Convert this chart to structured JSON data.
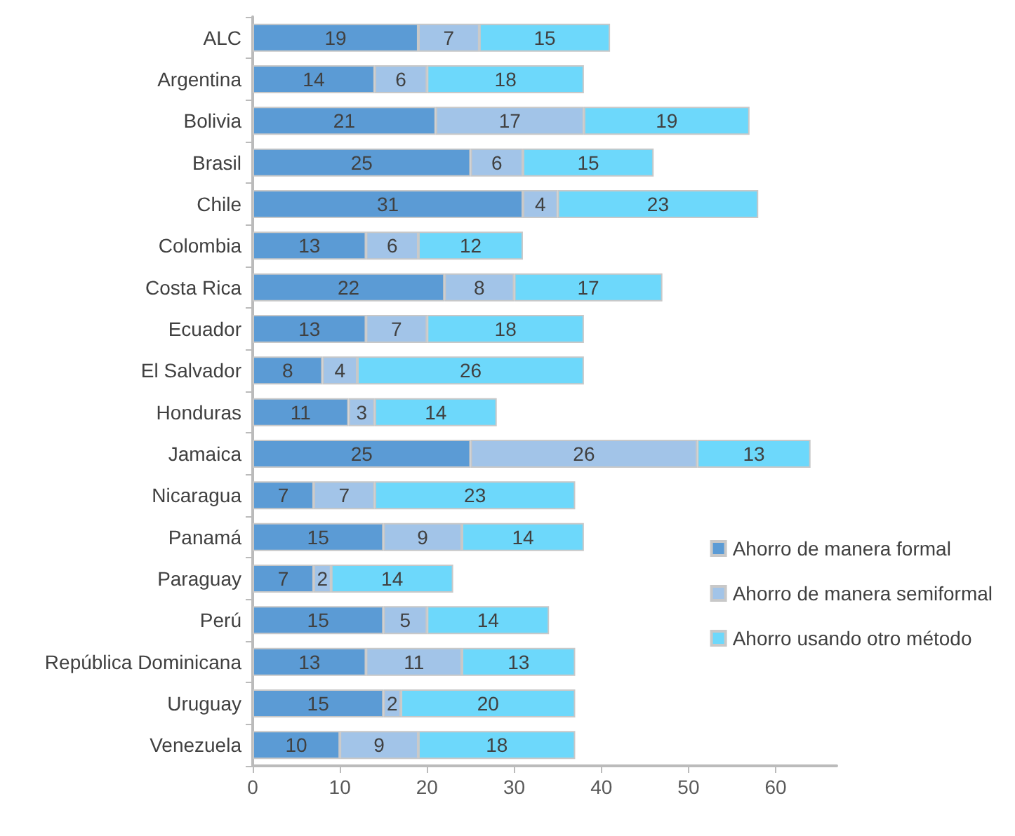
{
  "chart_data": {
    "type": "bar",
    "orientation": "horizontal",
    "stacked": true,
    "data_labels": true,
    "grid": false,
    "legend": "right",
    "categories": [
      "ALC",
      "Argentina",
      "Bolivia",
      "Brasil",
      "Chile",
      "Colombia",
      "Costa Rica",
      "Ecuador",
      "El Salvador",
      "Honduras",
      "Jamaica",
      "Nicaragua",
      "Panamá",
      "Paraguay",
      "Perú",
      "República Dominicana",
      "Uruguay",
      "Venezuela"
    ],
    "series": [
      {
        "name": "Ahorro de manera formal",
        "color": "#5b9bd5",
        "values": [
          19,
          14,
          21,
          25,
          31,
          13,
          22,
          13,
          8,
          11,
          25,
          7,
          15,
          7,
          15,
          13,
          15,
          10
        ]
      },
      {
        "name": "Ahorro de manera semiformal",
        "color": "#a2c4e8",
        "values": [
          7,
          6,
          17,
          6,
          4,
          6,
          8,
          7,
          4,
          3,
          26,
          7,
          9,
          2,
          5,
          11,
          2,
          9
        ]
      },
      {
        "name": "Ahorro usando otro método",
        "color": "#6dd8fb",
        "values": [
          15,
          18,
          19,
          15,
          23,
          12,
          17,
          18,
          26,
          14,
          13,
          23,
          14,
          14,
          14,
          13,
          20,
          18
        ]
      }
    ],
    "xlim": [
      0,
      67
    ],
    "xticks": [
      0,
      10,
      20,
      30,
      40,
      50,
      60
    ]
  }
}
